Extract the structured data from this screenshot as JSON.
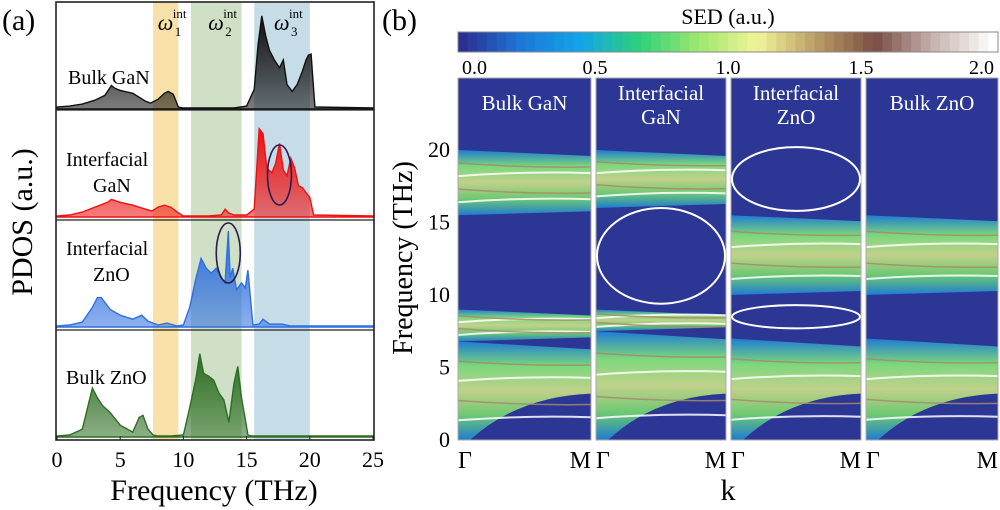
{
  "chart_data": [
    {
      "id": "a",
      "panel_label": "(a)",
      "type": "area",
      "xlabel": "Frequency (THz)",
      "ylabel": "PDOS (a.u.)",
      "xlim": [
        0,
        25
      ],
      "xticks": [
        "0",
        "5",
        "10",
        "15",
        "20",
        "25"
      ],
      "xtick_values": [
        0,
        5,
        10,
        15,
        20,
        25
      ],
      "bands": [
        {
          "name": "ω1 int",
          "label_main": "ω",
          "label_sub": "1",
          "label_sup": "int",
          "range": [
            7.6,
            9.6
          ],
          "color": "#f7e1a8"
        },
        {
          "name": "ω2 int",
          "label_main": "ω",
          "label_sub": "2",
          "label_sup": "int",
          "range": [
            10.6,
            14.6
          ],
          "color": "#cfe0c6"
        },
        {
          "name": "ω3 int",
          "label_main": "ω",
          "label_sub": "3",
          "label_sup": "int",
          "range": [
            15.6,
            20.0
          ],
          "color": "#c6dde8"
        }
      ],
      "series": [
        {
          "name": "Bulk GaN",
          "label_lines": [
            "Bulk GaN"
          ],
          "color": "#111111",
          "x": [
            0,
            1,
            2,
            3,
            3.8,
            4.3,
            4.6,
            5,
            6,
            7,
            7.4,
            8,
            8.5,
            8.8,
            9.2,
            9.6,
            10,
            12,
            14,
            15,
            15.6,
            15.9,
            16.2,
            16.5,
            16.8,
            17.2,
            17.6,
            17.9,
            18.2,
            18.6,
            19,
            19.4,
            19.7,
            19.9,
            20.1,
            20.4,
            25
          ],
          "y": [
            0.02,
            0.03,
            0.05,
            0.09,
            0.14,
            0.24,
            0.21,
            0.19,
            0.16,
            0.08,
            0.06,
            0.1,
            0.16,
            0.18,
            0.15,
            0.02,
            0.01,
            0.01,
            0.01,
            0.03,
            0.2,
            0.65,
            0.95,
            0.75,
            0.6,
            0.5,
            0.42,
            0.5,
            0.25,
            0.18,
            0.25,
            0.38,
            0.5,
            0.55,
            0.56,
            0.02,
            0.01
          ]
        },
        {
          "name": "Interfacial GaN",
          "label_lines": [
            "Interfacial",
            "GaN"
          ],
          "color": "#ee1111",
          "x": [
            0,
            1,
            2,
            3,
            4,
            4.3,
            5,
            6,
            7,
            7.5,
            8,
            8.5,
            9,
            9.5,
            10,
            12,
            13,
            13.3,
            13.6,
            14,
            15,
            15.6,
            16,
            16.3,
            16.6,
            17,
            17.3,
            17.6,
            17.9,
            18.2,
            18.5,
            18.8,
            19.1,
            19.4,
            19.7,
            20,
            20.3,
            25
          ],
          "y": [
            0.01,
            0.02,
            0.05,
            0.1,
            0.15,
            0.18,
            0.15,
            0.12,
            0.08,
            0.06,
            0.1,
            0.12,
            0.1,
            0.05,
            0.01,
            0.01,
            0.02,
            0.08,
            0.04,
            0.02,
            0.02,
            0.08,
            0.9,
            0.85,
            0.5,
            0.45,
            0.55,
            0.75,
            0.48,
            0.42,
            0.6,
            0.5,
            0.32,
            0.3,
            0.25,
            0.2,
            0.02,
            0.01
          ]
        },
        {
          "name": "Interfacial ZnO",
          "label_lines": [
            "Interfacial",
            "ZnO"
          ],
          "color": "#2f6fe0",
          "x": [
            0,
            1,
            2,
            2.8,
            3.2,
            3.5,
            3.8,
            4.2,
            5,
            6,
            6.7,
            7.2,
            8,
            8.7,
            9.5,
            10,
            10.5,
            11,
            11.4,
            11.8,
            12.2,
            12.6,
            13,
            13.3,
            13.55,
            13.7,
            13.9,
            14.2,
            14.6,
            14.9,
            15.1,
            15.3,
            15.5,
            16,
            16.3,
            16.8,
            17.8,
            18.5,
            20,
            25
          ],
          "y": [
            0.01,
            0.02,
            0.05,
            0.2,
            0.3,
            0.3,
            0.25,
            0.18,
            0.12,
            0.08,
            0.12,
            0.06,
            0.02,
            0.04,
            0.01,
            0.02,
            0.2,
            0.5,
            0.7,
            0.6,
            0.55,
            0.6,
            0.5,
            0.45,
            0.98,
            0.5,
            0.6,
            0.38,
            0.45,
            0.4,
            0.58,
            0.3,
            0.02,
            0.03,
            0.08,
            0.03,
            0.03,
            0.01,
            0.01,
            0.01
          ]
        },
        {
          "name": "Bulk ZnO",
          "label_lines": [
            "Bulk ZnO"
          ],
          "color": "#2e6e24",
          "x": [
            0,
            1,
            2,
            2.8,
            3.2,
            3.6,
            4.2,
            5,
            6,
            6.5,
            6.8,
            7.2,
            7.6,
            8,
            9,
            10,
            10.5,
            11,
            11.3,
            11.6,
            12,
            12.4,
            12.8,
            13.2,
            13.6,
            14,
            14.3,
            14.6,
            14.9,
            15.1,
            15.4,
            16,
            25
          ],
          "y": [
            0.01,
            0.02,
            0.08,
            0.5,
            0.4,
            0.32,
            0.25,
            0.12,
            0.05,
            0.2,
            0.22,
            0.08,
            0.02,
            0.01,
            0.01,
            0.02,
            0.3,
            0.6,
            0.85,
            0.65,
            0.62,
            0.58,
            0.45,
            0.38,
            0.15,
            0.55,
            0.72,
            0.4,
            0.18,
            0.02,
            0.01,
            0.01,
            0.01
          ]
        }
      ],
      "annotations": [
        {
          "type": "ellipse",
          "series": "Interfacial GaN",
          "center_x": 17.6,
          "note": "highlighted peak"
        },
        {
          "type": "ellipse",
          "series": "Interfacial ZnO",
          "center_x": 13.55,
          "note": "highlighted peak"
        }
      ]
    },
    {
      "id": "b",
      "panel_label": "(b)",
      "type": "heatmap",
      "title": "SED (a.u.)",
      "colorbar": {
        "label": "SED (a.u.)",
        "range": [
          0,
          2.0
        ],
        "ticks": [
          "0.0",
          "0.5",
          "1.0",
          "1.5",
          "2.0"
        ],
        "tick_values": [
          0,
          0.5,
          1.0,
          1.5,
          2.0
        ],
        "colors": [
          "#2b2f93",
          "#1d78d8",
          "#12a5e9",
          "#2ed07a",
          "#9ee86e",
          "#f2f49a",
          "#b99c64",
          "#7a4e47",
          "#c8b4b0",
          "#ffffff"
        ]
      },
      "xlabel": "k",
      "ylabel": "Frequency (THz)",
      "ylim": [
        0,
        22
      ],
      "yticks": [
        "0",
        "5",
        "10",
        "15",
        "20"
      ],
      "ytick_values": [
        0,
        5,
        10,
        15,
        20
      ],
      "xticks_per_panel": [
        "Γ",
        "M"
      ],
      "panels": [
        {
          "name": "Bulk GaN",
          "label_lines": [
            "Bulk GaN"
          ],
          "bands_thz": [
            [
              15.5,
              20.0
            ],
            [
              6.8,
              9.0
            ],
            [
              0,
              6.8
            ]
          ],
          "gap_thz": [
            9.0,
            15.5
          ],
          "ellipses": []
        },
        {
          "name": "Interfacial GaN",
          "label_lines": [
            "Interfacial",
            "GaN"
          ],
          "bands_thz": [
            [
              16.0,
              20.0
            ],
            [
              7.5,
              9.0
            ],
            [
              0,
              7.5
            ]
          ],
          "gap_thz": [
            9.0,
            16.0
          ],
          "ellipses": [
            {
              "center_thz": 12.7,
              "half_height_thz": 3.3
            }
          ]
        },
        {
          "name": "Interfacial ZnO",
          "label_lines": [
            "Interfacial",
            "ZnO"
          ],
          "bands_thz": [
            [
              10.0,
              15.5
            ],
            [
              0,
              7.0
            ]
          ],
          "gap_thz": [
            7.0,
            10.0
          ],
          "ellipses": [
            {
              "center_thz": 18.0,
              "half_height_thz": 2.2
            },
            {
              "center_thz": 8.5,
              "half_height_thz": 0.8
            }
          ]
        },
        {
          "name": "Bulk ZnO",
          "label_lines": [
            "Bulk ZnO"
          ],
          "bands_thz": [
            [
              10.0,
              15.5
            ],
            [
              0,
              7.0
            ]
          ],
          "gap_thz": [
            7.0,
            10.0
          ],
          "ellipses": []
        }
      ]
    }
  ]
}
